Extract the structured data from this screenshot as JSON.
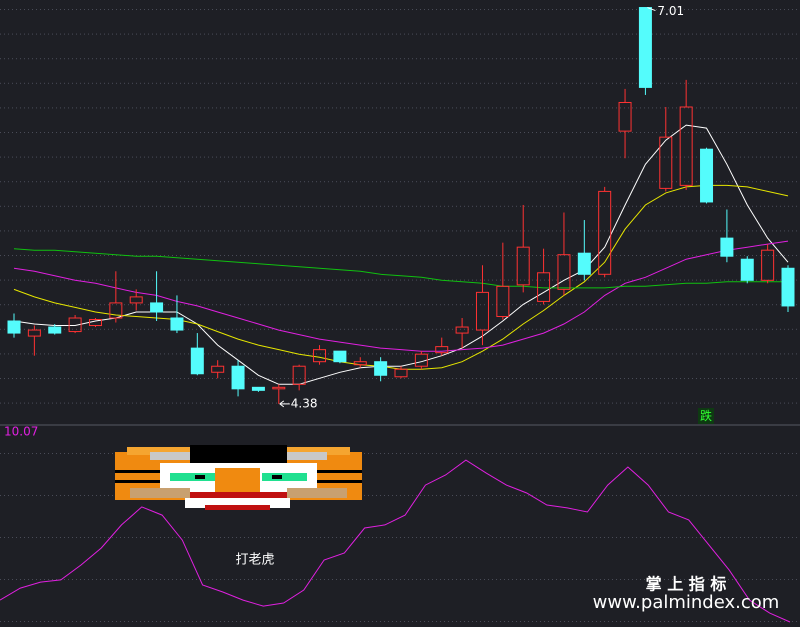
{
  "chart_data": [
    {
      "type": "candlestick",
      "ylim": [
        4.24,
        7.06
      ],
      "up_color": "#ff3232",
      "down_color": "#54fcfc",
      "open": [
        4.93,
        4.83,
        4.89,
        4.86,
        4.9,
        4.95,
        5.05,
        5.05,
        4.95,
        4.75,
        4.59,
        4.63,
        4.49,
        4.48,
        4.51,
        4.66,
        4.73,
        4.64,
        4.66,
        4.56,
        4.63,
        4.72,
        4.85,
        4.87,
        4.96,
        5.17,
        5.06,
        5.14,
        5.38,
        5.24,
        6.19,
        7.01,
        5.81,
        5.83,
        6.07,
        5.48,
        5.34,
        5.2,
        5.28
      ],
      "close": [
        4.85,
        4.87,
        4.85,
        4.95,
        4.94,
        5.05,
        5.09,
        4.99,
        4.87,
        4.58,
        4.63,
        4.48,
        4.47,
        4.49,
        4.63,
        4.74,
        4.66,
        4.66,
        4.57,
        4.61,
        4.71,
        4.76,
        4.89,
        5.12,
        5.16,
        5.42,
        5.25,
        5.37,
        5.24,
        5.79,
        6.38,
        6.48,
        6.15,
        6.35,
        5.72,
        5.36,
        5.2,
        5.4,
        5.03
      ],
      "high": [
        4.98,
        4.9,
        4.91,
        4.97,
        4.95,
        5.26,
        5.14,
        5.26,
        5.1,
        4.85,
        4.67,
        4.67,
        4.49,
        4.51,
        4.64,
        4.77,
        4.73,
        4.69,
        4.69,
        4.63,
        4.73,
        4.82,
        4.95,
        5.3,
        5.45,
        5.7,
        5.41,
        5.65,
        5.6,
        5.82,
        6.47,
        7.01,
        6.35,
        6.53,
        6.08,
        5.67,
        5.36,
        5.44,
        5.3
      ],
      "low": [
        4.82,
        4.7,
        4.84,
        4.85,
        4.89,
        4.92,
        5.0,
        4.93,
        4.85,
        4.57,
        4.55,
        4.43,
        4.46,
        4.38,
        4.47,
        4.64,
        4.65,
        4.62,
        4.53,
        4.55,
        4.61,
        4.7,
        4.75,
        4.77,
        4.94,
        5.12,
        5.04,
        5.1,
        5.2,
        5.22,
        6.01,
        6.43,
        5.79,
        5.8,
        5.71,
        5.32,
        5.18,
        5.18,
        4.99
      ],
      "series": [
        {
          "color": "#ffffff",
          "values": [
            4.93,
            4.91,
            4.9,
            4.9,
            4.93,
            4.95,
            4.99,
            4.99,
            4.99,
            4.91,
            4.77,
            4.67,
            4.57,
            4.51,
            4.51,
            4.55,
            4.59,
            4.62,
            4.63,
            4.63,
            4.66,
            4.7,
            4.75,
            4.83,
            4.93,
            5.04,
            5.12,
            5.2,
            5.27,
            5.42,
            5.7,
            5.97,
            6.13,
            6.23,
            6.21,
            5.97,
            5.7,
            5.48,
            5.32
          ]
        },
        {
          "color": "#e6e600",
          "values": [
            5.14,
            5.09,
            5.05,
            5.02,
            4.99,
            4.97,
            4.96,
            4.95,
            4.94,
            4.91,
            4.86,
            4.81,
            4.77,
            4.74,
            4.71,
            4.69,
            4.66,
            4.64,
            4.63,
            4.61,
            4.61,
            4.62,
            4.66,
            4.73,
            4.81,
            4.91,
            5.0,
            5.1,
            5.19,
            5.32,
            5.54,
            5.7,
            5.78,
            5.82,
            5.83,
            5.83,
            5.82,
            5.79,
            5.76
          ]
        },
        {
          "color": "#e020e0",
          "values": [
            5.28,
            5.26,
            5.23,
            5.2,
            5.18,
            5.15,
            5.12,
            5.1,
            5.06,
            5.03,
            4.99,
            4.95,
            4.91,
            4.87,
            4.84,
            4.81,
            4.79,
            4.77,
            4.75,
            4.74,
            4.73,
            4.73,
            4.74,
            4.75,
            4.77,
            4.81,
            4.85,
            4.91,
            4.99,
            5.1,
            5.18,
            5.22,
            5.28,
            5.34,
            5.37,
            5.4,
            5.42,
            5.44,
            5.46
          ]
        },
        {
          "color": "#10c010",
          "values": [
            5.41,
            5.4,
            5.4,
            5.39,
            5.38,
            5.37,
            5.36,
            5.36,
            5.35,
            5.34,
            5.33,
            5.32,
            5.31,
            5.3,
            5.29,
            5.28,
            5.27,
            5.26,
            5.24,
            5.23,
            5.22,
            5.2,
            5.19,
            5.18,
            5.16,
            5.16,
            5.15,
            5.15,
            5.15,
            5.15,
            5.16,
            5.16,
            5.17,
            5.18,
            5.18,
            5.19,
            5.19,
            5.19,
            5.19
          ]
        }
      ],
      "high_label": 7.01,
      "low_label": 4.38,
      "signal_label": "跌"
    },
    {
      "type": "line",
      "value_label": 10.07,
      "ylim": [
        0,
        10.07
      ],
      "caption": "打老虎",
      "series": [
        {
          "color": "#e020e0",
          "values": [
            1.39,
            2.01,
            2.32,
            2.43,
            3.2,
            4.08,
            5.27,
            6.2,
            5.78,
            4.49,
            2.17,
            1.81,
            1.39,
            1.08,
            1.24,
            1.91,
            3.46,
            3.82,
            5.11,
            5.27,
            5.78,
            7.33,
            7.85,
            8.62,
            7.95,
            7.33,
            6.92,
            6.3,
            6.15,
            5.94,
            7.33,
            8.26,
            7.33,
            5.94,
            5.53,
            4.23,
            2.94,
            1.39,
            0.72,
            0.26
          ]
        }
      ]
    }
  ],
  "watermark": {
    "title": "掌 上 指 标",
    "url": "www.palmindex.com"
  }
}
